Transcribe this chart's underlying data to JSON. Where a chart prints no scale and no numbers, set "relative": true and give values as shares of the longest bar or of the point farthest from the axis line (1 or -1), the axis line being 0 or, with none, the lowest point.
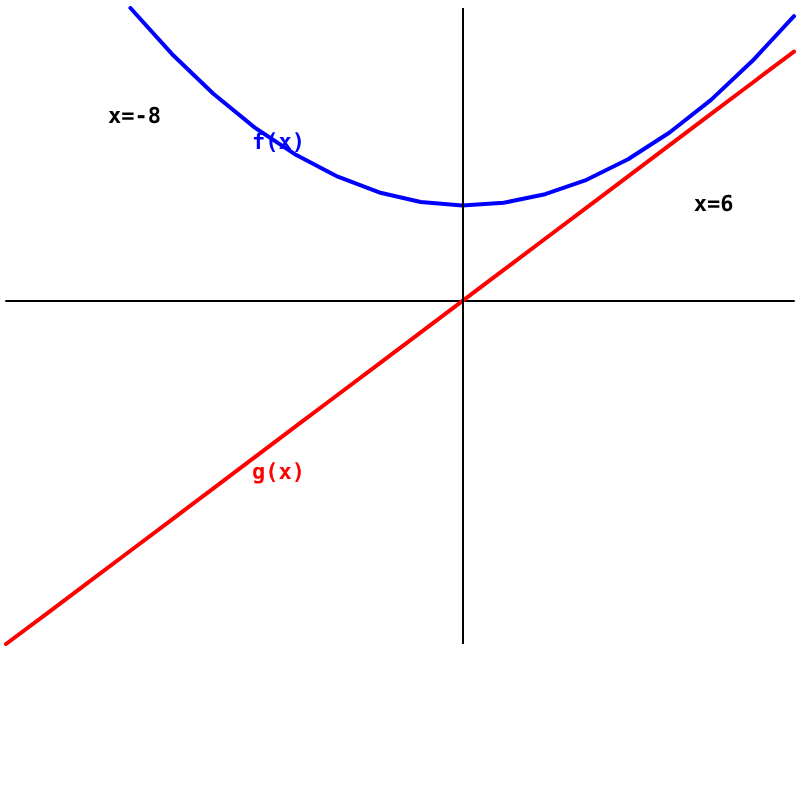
{
  "chart_data": {
    "type": "line",
    "relative": true,
    "grid": false,
    "marker": "none",
    "line_style": "solid",
    "categories": [
      null,
      null,
      null,
      null,
      null,
      null,
      null,
      null,
      null,
      null,
      null,
      null,
      null,
      null,
      null,
      null,
      null,
      null,
      null,
      null
    ],
    "series": [
      {
        "color": "#0000ff",
        "values": [
          null,
          null,
          null,
          0.855,
          0.721,
          0.605,
          0.506,
          0.426,
          0.363,
          0.317,
          0.289,
          0.279,
          0.287,
          0.312,
          0.354,
          0.414,
          0.492,
          0.587,
          0.701,
          0.831
        ]
      },
      {
        "color": "#ff0000",
        "values": [
          -1,
          -0.91,
          -0.819,
          -0.728,
          -0.637,
          -0.546,
          -0.455,
          -0.364,
          -0.273,
          -0.182,
          -0.091,
          0,
          0.091,
          0.182,
          0.273,
          0.364,
          0.455,
          0.546,
          0.637,
          0.728
        ]
      }
    ],
    "annotations": [
      "x=-8",
      "f(x)",
      "x=6",
      "g(x)"
    ]
  }
}
